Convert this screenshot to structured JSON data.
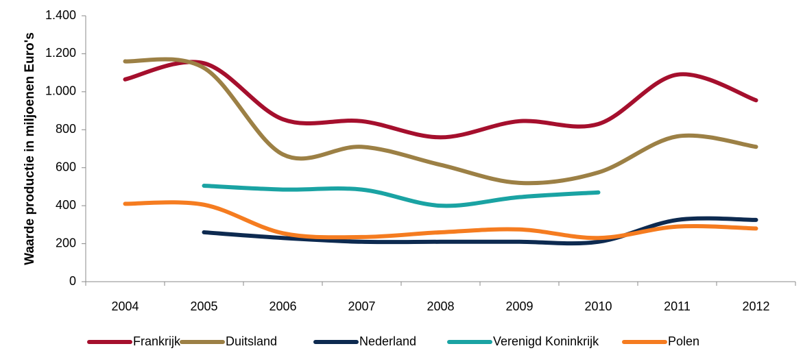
{
  "chart_data": {
    "type": "line",
    "y_label": "Waarde productie in miljoenen Euro's",
    "categories": [
      "2004",
      "2005",
      "2006",
      "2007",
      "2008",
      "2009",
      "2010",
      "2011",
      "2012"
    ],
    "series": [
      {
        "name": "Frankrijk",
        "color": "#a50f2d",
        "values": [
          1065,
          1150,
          855,
          845,
          760,
          845,
          830,
          1090,
          955
        ]
      },
      {
        "name": "Duitsland",
        "color": "#9c8045",
        "values": [
          1160,
          1125,
          670,
          710,
          615,
          520,
          575,
          765,
          710
        ]
      },
      {
        "name": "Nederland",
        "color": "#0d2a50",
        "values": [
          null,
          260,
          230,
          210,
          210,
          210,
          210,
          325,
          325
        ]
      },
      {
        "name": "Verenigd Koninkrijk",
        "color": "#1aa3a3",
        "values": [
          null,
          505,
          485,
          485,
          400,
          445,
          470,
          null,
          null
        ]
      },
      {
        "name": "Polen",
        "color": "#f57c20",
        "values": [
          410,
          405,
          255,
          235,
          260,
          275,
          230,
          290,
          280
        ]
      }
    ],
    "ylim": [
      0,
      1400
    ],
    "yticks": [
      0,
      200,
      400,
      600,
      800,
      {
        "value": 1000,
        "label": "1.000"
      },
      {
        "value": 1200,
        "label": "1.200"
      },
      {
        "value": 1400,
        "label": "1.400"
      }
    ],
    "smooth": true,
    "legend": "bottom"
  }
}
